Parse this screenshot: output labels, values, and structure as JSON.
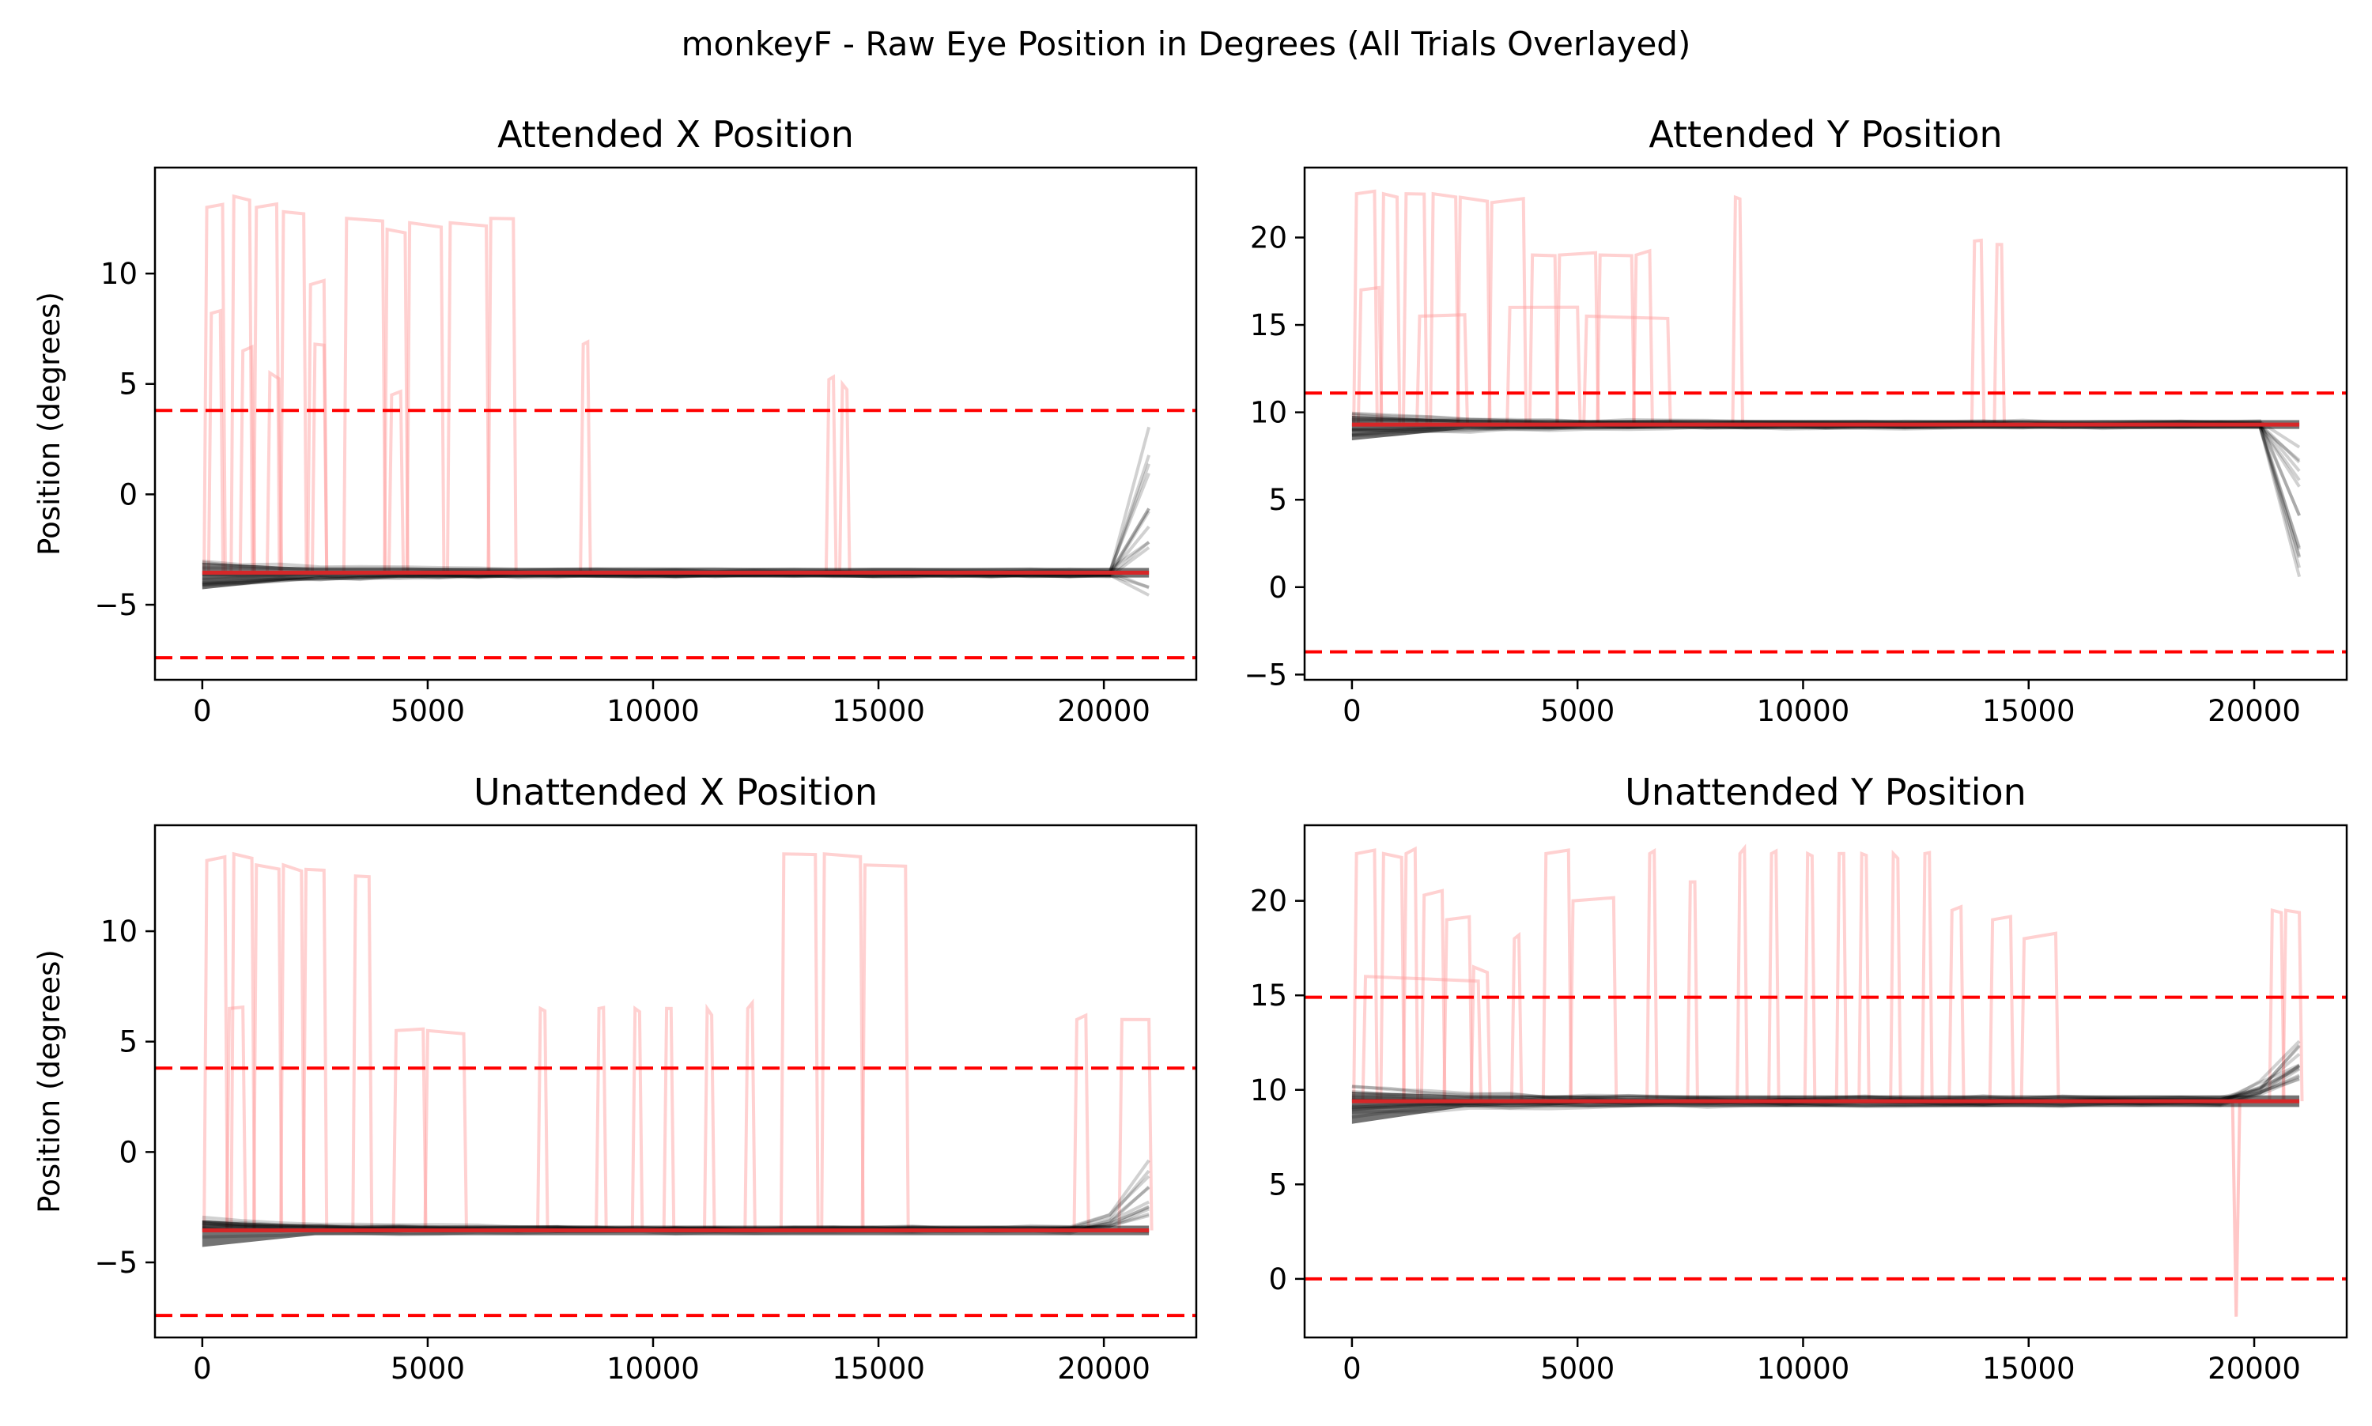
{
  "figure_title": "monkeyF - Raw Eye Position in Degrees (All Trials Overlayed)",
  "colors": {
    "trace_in": "#000000",
    "trace_out": "#ff9999",
    "threshold": "#ff0000",
    "mean": "#d62728"
  },
  "chart_data": [
    {
      "type": "line",
      "title": "Attended X Position",
      "xlabel": "",
      "ylabel": "Position (degrees)",
      "xlim": [
        -1050,
        22050
      ],
      "ylim": [
        -8.4,
        14.8
      ],
      "xticks": [
        0,
        5000,
        10000,
        15000,
        20000
      ],
      "yticks": [
        -5,
        0,
        5,
        10
      ],
      "thresholds": [
        3.8,
        -7.4
      ],
      "mean_level": -3.55,
      "band": [
        -4.3,
        -3.1
      ],
      "tail": {
        "start": 20400,
        "end": 21000,
        "values": [
          3.2,
          0.4,
          -2.0,
          -4.6
        ]
      },
      "excursions": [
        {
          "x": 100,
          "x2": 450,
          "v": 13.0
        },
        {
          "x": 700,
          "x2": 1050,
          "v": 13.5
        },
        {
          "x": 1200,
          "x2": 1650,
          "v": 13.0
        },
        {
          "x": 1800,
          "x2": 2250,
          "v": 12.8
        },
        {
          "x": 2400,
          "x2": 2700,
          "v": 9.5
        },
        {
          "x": 3200,
          "x2": 4000,
          "v": 12.5
        },
        {
          "x": 4100,
          "x2": 4500,
          "v": 12.0
        },
        {
          "x": 4600,
          "x2": 5300,
          "v": 12.3
        },
        {
          "x": 5500,
          "x2": 6300,
          "v": 12.3
        },
        {
          "x": 6400,
          "x2": 6900,
          "v": 12.5
        },
        {
          "x": 200,
          "x2": 400,
          "v": 8.2
        },
        {
          "x": 900,
          "x2": 1100,
          "v": 6.5
        },
        {
          "x": 1500,
          "x2": 1700,
          "v": 5.5
        },
        {
          "x": 2500,
          "x2": 2700,
          "v": 6.8
        },
        {
          "x": 4200,
          "x2": 4400,
          "v": 4.5
        },
        {
          "x": 8450,
          "x2": 8550,
          "v": 6.8
        },
        {
          "x": 13900,
          "x2": 14000,
          "v": 5.2
        },
        {
          "x": 14200,
          "x2": 14300,
          "v": 5.0
        }
      ]
    },
    {
      "type": "line",
      "title": "Attended Y Position",
      "xlabel": "",
      "ylabel": "",
      "xlim": [
        -1050,
        22050
      ],
      "ylim": [
        -5.3,
        24.0
      ],
      "xticks": [
        0,
        5000,
        10000,
        15000,
        20000
      ],
      "yticks": [
        -5,
        0,
        5,
        10,
        15,
        20
      ],
      "thresholds": [
        11.1,
        -3.7
      ],
      "mean_level": 9.3,
      "band": [
        8.4,
        9.8
      ],
      "tail": {
        "start": 20400,
        "end": 21000,
        "values": [
          -1.0,
          1.5,
          4.0,
          7.0
        ]
      },
      "excursions": [
        {
          "x": 100,
          "x2": 500,
          "v": 22.5
        },
        {
          "x": 700,
          "x2": 1000,
          "v": 22.5
        },
        {
          "x": 1200,
          "x2": 1600,
          "v": 22.5
        },
        {
          "x": 1800,
          "x2": 2300,
          "v": 22.5
        },
        {
          "x": 2400,
          "x2": 3000,
          "v": 22.3
        },
        {
          "x": 3100,
          "x2": 3800,
          "v": 22.0
        },
        {
          "x": 4000,
          "x2": 4500,
          "v": 19.0
        },
        {
          "x": 4600,
          "x2": 5400,
          "v": 19.0
        },
        {
          "x": 5500,
          "x2": 6200,
          "v": 19.0
        },
        {
          "x": 6300,
          "x2": 6600,
          "v": 19.0
        },
        {
          "x": 1500,
          "x2": 2500,
          "v": 15.5
        },
        {
          "x": 3500,
          "x2": 5000,
          "v": 16.0
        },
        {
          "x": 5200,
          "x2": 7000,
          "v": 15.5
        },
        {
          "x": 200,
          "x2": 600,
          "v": 17.0
        },
        {
          "x": 8500,
          "x2": 8600,
          "v": 22.3
        },
        {
          "x": 13800,
          "x2": 13950,
          "v": 19.8
        },
        {
          "x": 14300,
          "x2": 14400,
          "v": 19.6
        }
      ]
    },
    {
      "type": "line",
      "title": "Unattended X Position",
      "xlabel": "",
      "ylabel": "Position (degrees)",
      "xlim": [
        -1050,
        22050
      ],
      "ylim": [
        -8.4,
        14.8
      ],
      "xticks": [
        0,
        5000,
        10000,
        15000,
        20000
      ],
      "yticks": [
        -5,
        0,
        5,
        10
      ],
      "thresholds": [
        3.8,
        -7.4
      ],
      "mean_level": -3.55,
      "band": [
        -4.3,
        -3.1
      ],
      "tail": {
        "start": 19900,
        "end": 21000,
        "values": [
          -1.5,
          0.3,
          -2.5,
          -3.6
        ]
      },
      "excursions": [
        {
          "x": 100,
          "x2": 500,
          "v": 13.2
        },
        {
          "x": 700,
          "x2": 1100,
          "v": 13.5
        },
        {
          "x": 1200,
          "x2": 1700,
          "v": 13.0
        },
        {
          "x": 1800,
          "x2": 2200,
          "v": 13.0
        },
        {
          "x": 2300,
          "x2": 2700,
          "v": 12.8
        },
        {
          "x": 3400,
          "x2": 3700,
          "v": 12.5
        },
        {
          "x": 4300,
          "x2": 4900,
          "v": 5.5
        },
        {
          "x": 5000,
          "x2": 5800,
          "v": 5.5
        },
        {
          "x": 600,
          "x2": 900,
          "v": 6.5
        },
        {
          "x": 7500,
          "x2": 7600,
          "v": 6.5
        },
        {
          "x": 8800,
          "x2": 8900,
          "v": 6.5
        },
        {
          "x": 9600,
          "x2": 9700,
          "v": 6.5
        },
        {
          "x": 10300,
          "x2": 10400,
          "v": 6.5
        },
        {
          "x": 11200,
          "x2": 11300,
          "v": 6.5
        },
        {
          "x": 12100,
          "x2": 12200,
          "v": 6.5
        },
        {
          "x": 12900,
          "x2": 13600,
          "v": 13.5
        },
        {
          "x": 13800,
          "x2": 14600,
          "v": 13.5
        },
        {
          "x": 14700,
          "x2": 15600,
          "v": 13.0
        },
        {
          "x": 19400,
          "x2": 19600,
          "v": 6.0
        },
        {
          "x": 20400,
          "x2": 21000,
          "v": 6.0
        }
      ]
    },
    {
      "type": "line",
      "title": "Unattended Y Position",
      "xlabel": "",
      "ylabel": "",
      "xlim": [
        -1050,
        22050
      ],
      "ylim": [
        -3.1,
        24.0
      ],
      "xticks": [
        0,
        5000,
        10000,
        15000,
        20000
      ],
      "yticks": [
        0,
        5,
        10,
        15,
        20
      ],
      "thresholds": [
        14.9,
        0.0
      ],
      "mean_level": 9.4,
      "band": [
        8.2,
        9.9
      ],
      "tail": {
        "start": 19700,
        "end": 21000,
        "values": [
          11.5,
          12.5,
          13.0,
          11.0
        ]
      },
      "excursions": [
        {
          "x": 100,
          "x2": 500,
          "v": 22.5
        },
        {
          "x": 700,
          "x2": 1100,
          "v": 22.5
        },
        {
          "x": 1200,
          "x2": 1400,
          "v": 22.5
        },
        {
          "x": 1600,
          "x2": 2000,
          "v": 20.3
        },
        {
          "x": 2100,
          "x2": 2600,
          "v": 19.0
        },
        {
          "x": 2700,
          "x2": 3000,
          "v": 16.5
        },
        {
          "x": 3600,
          "x2": 3700,
          "v": 18.0
        },
        {
          "x": 4300,
          "x2": 4800,
          "v": 22.5
        },
        {
          "x": 4900,
          "x2": 5800,
          "v": 20.0
        },
        {
          "x": 6600,
          "x2": 6700,
          "v": 22.5
        },
        {
          "x": 7500,
          "x2": 7600,
          "v": 21.0
        },
        {
          "x": 8600,
          "x2": 8700,
          "v": 22.5
        },
        {
          "x": 9300,
          "x2": 9400,
          "v": 22.5
        },
        {
          "x": 10100,
          "x2": 10200,
          "v": 22.5
        },
        {
          "x": 10800,
          "x2": 10900,
          "v": 22.5
        },
        {
          "x": 11300,
          "x2": 11400,
          "v": 22.5
        },
        {
          "x": 12000,
          "x2": 12100,
          "v": 22.5
        },
        {
          "x": 12700,
          "x2": 12800,
          "v": 22.5
        },
        {
          "x": 13300,
          "x2": 13500,
          "v": 19.5
        },
        {
          "x": 14200,
          "x2": 14600,
          "v": 19.0
        },
        {
          "x": 14900,
          "x2": 15600,
          "v": 18.0
        },
        {
          "x": 300,
          "x2": 2800,
          "v": 16.0
        },
        {
          "x": 20400,
          "x2": 20600,
          "v": 19.5
        },
        {
          "x": 20700,
          "x2": 21000,
          "v": 19.5
        }
      ],
      "dips": [
        {
          "x": 19600,
          "v": -2.0
        }
      ]
    }
  ]
}
